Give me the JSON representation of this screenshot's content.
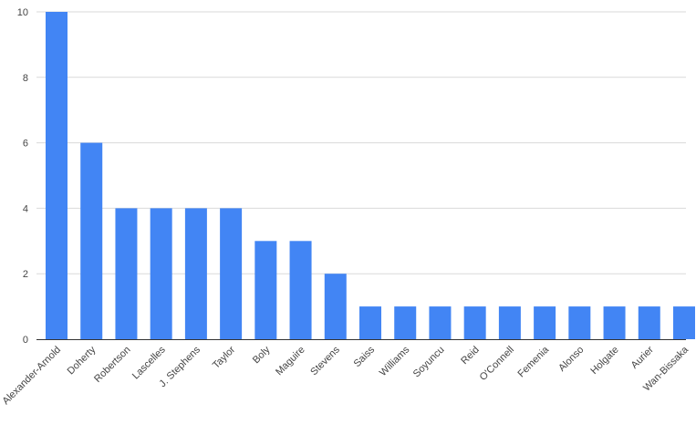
{
  "chart_data": {
    "type": "bar",
    "title": "",
    "xlabel": "",
    "ylabel": "",
    "ylim": [
      0,
      10
    ],
    "yticks": [
      0,
      2,
      4,
      6,
      8,
      10
    ],
    "grid": true,
    "legend": "none",
    "bar_color": "#4285f4",
    "categories": [
      "Alexander-Arnold",
      "Doherty",
      "Robertson",
      "Lascelles",
      "J. Stephens",
      "Taylor",
      "Boly",
      "Maguire",
      "Stevens",
      "Saiss",
      "Williams",
      "Soyuncu",
      "Reid",
      "O'Connell",
      "Femenia",
      "Alonso",
      "Holgate",
      "Aurier",
      "Wan-Bissaka"
    ],
    "values": [
      10,
      6,
      4,
      4,
      4,
      4,
      3,
      3,
      2,
      1,
      1,
      1,
      1,
      1,
      1,
      1,
      1,
      1,
      1
    ]
  }
}
